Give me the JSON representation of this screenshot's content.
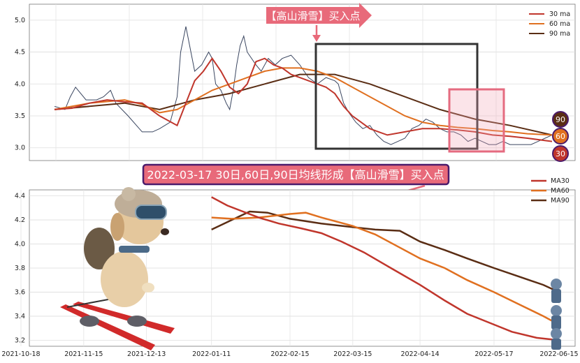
{
  "colors": {
    "ma30": "#c0362c",
    "ma60": "#e07020",
    "ma90": "#5a2d14",
    "price": "#3a4660",
    "callout_fill": "#e86a7a",
    "highlight_box": "#e56b80",
    "dark_box": "#333333",
    "banner_border": "#4b1b6b"
  },
  "annotations": {
    "top_callout": "【高山滑雪】买入点",
    "banner": "2022-03-17 30日,60日,90日均线形成【高山滑雪】买入点",
    "badge_90": "90",
    "badge_60": "60",
    "badge_30": "30"
  },
  "chart_data": [
    {
      "type": "line",
      "panel": "top",
      "legend": [
        "30 ma",
        "60 ma",
        "90 ma"
      ],
      "legend_position": "top-right",
      "grid": true,
      "ylim": [
        2.8,
        5.25
      ],
      "yticks": [
        "3.0",
        "3.5",
        "4.0",
        "4.5",
        "5.0"
      ],
      "price_series": {
        "name": "price",
        "x": [
          0,
          6,
          9,
          12,
          18,
          24,
          28,
          32,
          35,
          42,
          50,
          56,
          60,
          66,
          70,
          72,
          75,
          80,
          84,
          88,
          90,
          92,
          95,
          98,
          100,
          102,
          104,
          106,
          108,
          110,
          115,
          118,
          122,
          126,
          130,
          135,
          140,
          145,
          150,
          155,
          160,
          162,
          165,
          168,
          172,
          176,
          180,
          184,
          188,
          192,
          196,
          200,
          204,
          208,
          212,
          216,
          220,
          224,
          228,
          232,
          236,
          240,
          244,
          248,
          252,
          256,
          260,
          264,
          268,
          272,
          276,
          280,
          284
        ],
        "y": [
          3.65,
          3.6,
          3.8,
          3.95,
          3.75,
          3.75,
          3.8,
          3.9,
          3.7,
          3.5,
          3.25,
          3.25,
          3.3,
          3.4,
          3.8,
          4.5,
          4.9,
          4.2,
          4.3,
          4.5,
          4.4,
          4.0,
          3.9,
          3.7,
          3.6,
          3.9,
          4.3,
          4.6,
          4.75,
          4.5,
          4.3,
          4.2,
          4.4,
          4.3,
          4.4,
          4.45,
          4.3,
          4.1,
          4.0,
          4.1,
          4.05,
          4.0,
          3.7,
          3.55,
          3.4,
          3.3,
          3.35,
          3.2,
          3.1,
          3.05,
          3.1,
          3.15,
          3.3,
          3.35,
          3.45,
          3.4,
          3.3,
          3.25,
          3.25,
          3.2,
          3.1,
          3.15,
          3.1,
          3.05,
          3.05,
          3.1,
          3.05,
          3.05,
          3.05,
          3.05,
          3.1,
          3.15,
          3.2
        ]
      },
      "series": [
        {
          "name": "30 ma",
          "x": [
            0,
            10,
            20,
            30,
            40,
            50,
            60,
            70,
            75,
            80,
            85,
            90,
            95,
            100,
            105,
            110,
            115,
            120,
            125,
            130,
            135,
            140,
            145,
            150,
            155,
            160,
            165,
            170,
            175,
            180,
            185,
            190,
            200,
            210,
            220,
            230,
            240,
            250,
            260,
            270,
            284
          ],
          "y": [
            3.6,
            3.62,
            3.7,
            3.75,
            3.72,
            3.7,
            3.5,
            3.35,
            3.7,
            4.05,
            4.2,
            4.4,
            4.2,
            3.95,
            3.85,
            4.0,
            4.35,
            4.4,
            4.3,
            4.25,
            4.15,
            4.1,
            4.05,
            4.0,
            3.95,
            3.85,
            3.65,
            3.5,
            3.4,
            3.3,
            3.25,
            3.2,
            3.25,
            3.3,
            3.3,
            3.28,
            3.25,
            3.2,
            3.18,
            3.15,
            3.1
          ]
        },
        {
          "name": "60 ma",
          "x": [
            0,
            20,
            40,
            50,
            60,
            70,
            80,
            90,
            100,
            110,
            120,
            130,
            140,
            150,
            160,
            170,
            180,
            190,
            200,
            210,
            220,
            230,
            240,
            250,
            260,
            270,
            284
          ],
          "y": [
            3.6,
            3.7,
            3.75,
            3.68,
            3.55,
            3.6,
            3.75,
            3.9,
            4.0,
            4.1,
            4.2,
            4.25,
            4.25,
            4.2,
            4.1,
            3.95,
            3.8,
            3.65,
            3.5,
            3.4,
            3.35,
            3.32,
            3.3,
            3.27,
            3.25,
            3.22,
            3.2
          ]
        },
        {
          "name": "90 ma",
          "x": [
            0,
            20,
            40,
            60,
            80,
            100,
            120,
            140,
            160,
            180,
            200,
            220,
            240,
            260,
            284
          ],
          "y": [
            3.6,
            3.65,
            3.7,
            3.6,
            3.75,
            3.85,
            4.0,
            4.15,
            4.15,
            4.0,
            3.8,
            3.6,
            3.45,
            3.35,
            3.2
          ]
        }
      ]
    },
    {
      "type": "line",
      "panel": "bottom",
      "legend": [
        "MA30",
        "MA60",
        "MA90"
      ],
      "legend_position": "top-right",
      "grid": true,
      "x_tick_labels": [
        "2021-10-18",
        "2021-11-15",
        "2021-12-13",
        "2022-01-11",
        "2022-02-15",
        "2022-03-15",
        "2022-04-14",
        "2022-05-17",
        "2022-06-15"
      ],
      "ylim": [
        3.15,
        4.45
      ],
      "yticks": [
        "3.2",
        "3.4",
        "3.6",
        "3.8",
        "4.0",
        "4.2",
        "4.4"
      ],
      "series": [
        {
          "name": "MA30",
          "x": [
            "2022-01-11",
            "2022-01-18",
            "2022-01-25",
            "2022-02-01",
            "2022-02-10",
            "2022-02-20",
            "2022-03-01",
            "2022-03-10",
            "2022-03-20",
            "2022-04-01",
            "2022-04-14",
            "2022-04-25",
            "2022-05-05",
            "2022-05-17",
            "2022-05-25",
            "2022-06-05",
            "2022-06-15"
          ],
          "y": [
            4.39,
            4.32,
            4.27,
            4.22,
            4.17,
            4.13,
            4.09,
            4.02,
            3.93,
            3.8,
            3.66,
            3.53,
            3.42,
            3.33,
            3.27,
            3.22,
            3.2
          ]
        },
        {
          "name": "MA60",
          "x": [
            "2022-01-11",
            "2022-01-20",
            "2022-02-01",
            "2022-02-15",
            "2022-02-22",
            "2022-03-01",
            "2022-03-15",
            "2022-03-25",
            "2022-04-05",
            "2022-04-14",
            "2022-04-25",
            "2022-05-05",
            "2022-05-17",
            "2022-05-28",
            "2022-06-08",
            "2022-06-15"
          ],
          "y": [
            4.22,
            4.21,
            4.22,
            4.25,
            4.26,
            4.22,
            4.15,
            4.08,
            3.97,
            3.88,
            3.8,
            3.7,
            3.6,
            3.5,
            3.4,
            3.33
          ]
        },
        {
          "name": "MA90",
          "x": [
            "2022-01-11",
            "2022-01-20",
            "2022-01-28",
            "2022-02-05",
            "2022-02-15",
            "2022-03-01",
            "2022-03-15",
            "2022-03-25",
            "2022-04-05",
            "2022-04-14",
            "2022-04-25",
            "2022-05-05",
            "2022-05-17",
            "2022-05-28",
            "2022-06-08",
            "2022-06-15"
          ],
          "y": [
            4.12,
            4.2,
            4.27,
            4.26,
            4.21,
            4.17,
            4.14,
            4.12,
            4.11,
            4.02,
            3.95,
            3.88,
            3.8,
            3.73,
            3.66,
            3.6
          ]
        }
      ]
    }
  ]
}
